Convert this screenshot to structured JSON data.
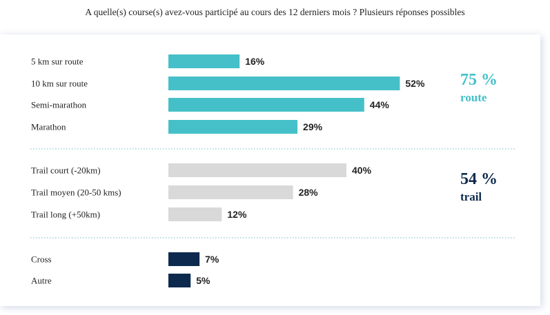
{
  "title": "A quelle(s) course(s) avez-vous participé au cours des 12 derniers mois ? Plusieurs réponses possibles",
  "chart_data": {
    "type": "bar",
    "orientation": "horizontal",
    "value_unit": "%",
    "categories": [
      "5 km sur route",
      "10 km sur route",
      "Semi-marathon",
      "Marathon",
      "Trail court (-20km)",
      "Trail moyen (20-50 kms)",
      "Trail long (+50km)",
      "Cross",
      "Autre"
    ],
    "values": [
      16,
      52,
      44,
      29,
      40,
      28,
      12,
      7,
      5
    ],
    "value_labels": [
      "16%",
      "52%",
      "44%",
      "29%",
      "40%",
      "28%",
      "12%",
      "7%",
      "5%"
    ],
    "groups": [
      {
        "members": [
          0,
          1,
          2,
          3
        ],
        "color": "#45c0c8",
        "total_label": "75 %",
        "name": "route"
      },
      {
        "members": [
          4,
          5,
          6
        ],
        "color": "#d9d9d9",
        "total_label": "54 %",
        "name": "trail"
      },
      {
        "members": [
          7,
          8
        ],
        "color": "#0d2a4e",
        "total_label": "",
        "name": ""
      }
    ],
    "group_label_colors": [
      "#45c0c8",
      "#0d2a4e",
      "#0d2a4e"
    ],
    "grid": false,
    "legend": "none",
    "separators": "dotted"
  }
}
